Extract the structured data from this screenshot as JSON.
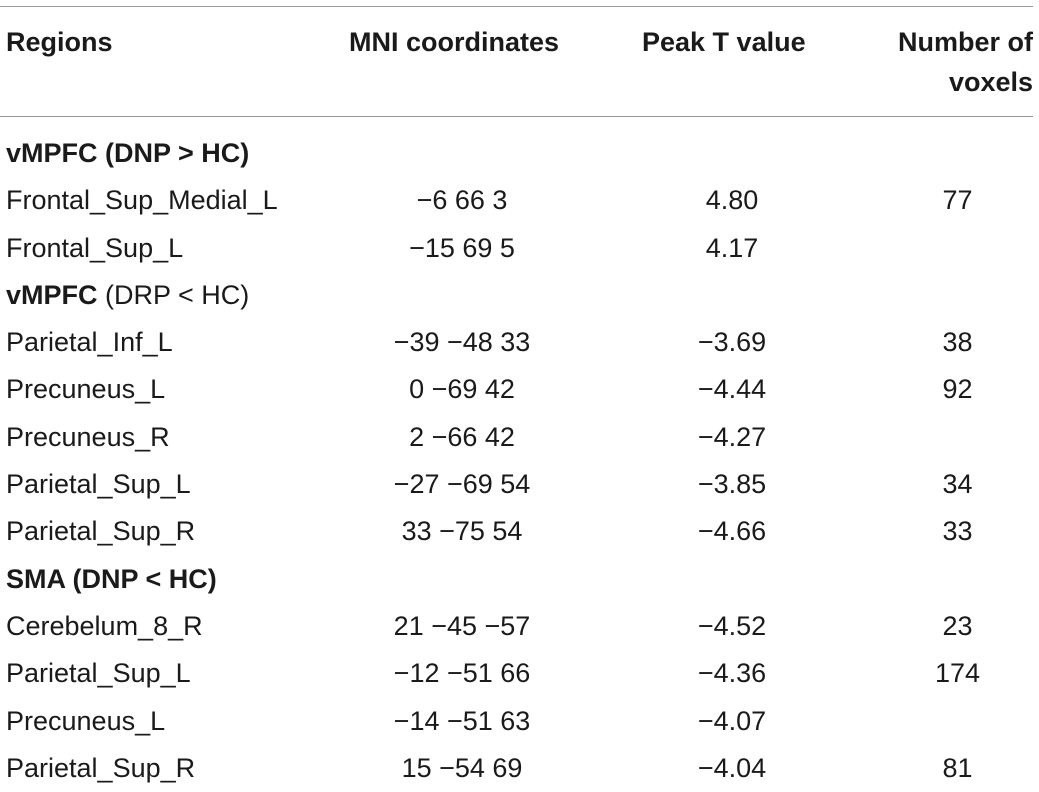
{
  "header": {
    "regions": "Regions",
    "mni": "MNI coordinates",
    "peak": "Peak T value",
    "voxels_line1": "Number of",
    "voxels_line2": "voxels"
  },
  "rows": [
    {
      "type": "group",
      "label": "vMPFC (DNP > HC)"
    },
    {
      "type": "data",
      "region": "Frontal_Sup_Medial_L",
      "mni": "−6 66 3",
      "peak": "4.80",
      "voxels": "77"
    },
    {
      "type": "data",
      "region": "Frontal_Sup_L",
      "mni": "−15 69 5",
      "peak": "4.17",
      "voxels": ""
    },
    {
      "type": "group-mixed",
      "label_bold": "vMPFC",
      "label_plain": " (DRP < HC)"
    },
    {
      "type": "data",
      "region": "Parietal_Inf_L",
      "mni": "−39 −48 33",
      "peak": "−3.69",
      "voxels": "38"
    },
    {
      "type": "data",
      "region": "Precuneus_L",
      "mni": "0 −69 42",
      "peak": "−4.44",
      "voxels": "92"
    },
    {
      "type": "data",
      "region": "Precuneus_R",
      "mni": "2 −66 42",
      "peak": "−4.27",
      "voxels": ""
    },
    {
      "type": "data",
      "region": "Parietal_Sup_L",
      "mni": "−27 −69 54",
      "peak": "−3.85",
      "voxels": "34"
    },
    {
      "type": "data",
      "region": "Parietal_Sup_R",
      "mni": "33 −75 54",
      "peak": "−4.66",
      "voxels": "33"
    },
    {
      "type": "group",
      "label": "SMA (DNP < HC)"
    },
    {
      "type": "data",
      "region": "Cerebelum_8_R",
      "mni": "21 −45 −57",
      "peak": "−4.52",
      "voxels": "23"
    },
    {
      "type": "data",
      "region": "Parietal_Sup_L",
      "mni": "−12 −51 66",
      "peak": "−4.36",
      "voxels": "174"
    },
    {
      "type": "data",
      "region": "Precuneus_L",
      "mni": "−14 −51 63",
      "peak": "−4.07",
      "voxels": ""
    },
    {
      "type": "data",
      "region": "Parietal_Sup_R",
      "mni": "15 −54 69",
      "peak": "−4.04",
      "voxels": "81"
    }
  ]
}
